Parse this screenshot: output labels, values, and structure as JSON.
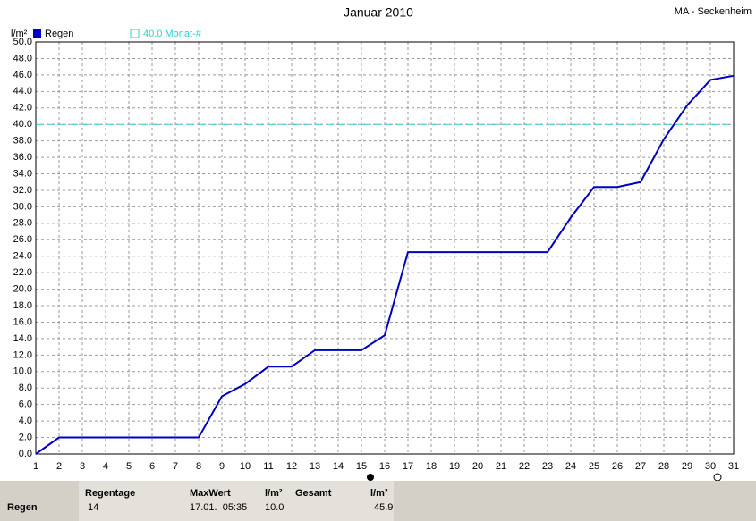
{
  "chart_data": {
    "type": "line",
    "title": "Januar 2010",
    "station": "MA - Seckenheim",
    "y_label": "l/m²",
    "x": [
      1,
      2,
      3,
      4,
      5,
      6,
      7,
      8,
      9,
      10,
      11,
      12,
      13,
      14,
      15,
      16,
      17,
      18,
      19,
      20,
      21,
      22,
      23,
      24,
      25,
      26,
      27,
      28,
      29,
      30,
      31
    ],
    "series": [
      {
        "name": "Regen",
        "color": "#0000c0",
        "values": [
          0,
          2.0,
          2.0,
          2.0,
          2.0,
          2.0,
          2.0,
          2.0,
          7.0,
          8.5,
          10.6,
          10.6,
          12.6,
          12.6,
          12.6,
          14.4,
          24.5,
          24.5,
          24.5,
          24.5,
          24.5,
          24.5,
          24.5,
          28.7,
          32.4,
          32.4,
          33.0,
          38.2,
          42.3,
          45.4,
          45.9
        ]
      }
    ],
    "reference_lines": [
      {
        "name": "40.0 Monat-#",
        "value": 40.0,
        "color": "#33cccc"
      }
    ],
    "xlim": [
      1,
      31
    ],
    "xticks": [
      1,
      2,
      3,
      4,
      5,
      6,
      7,
      8,
      9,
      10,
      11,
      12,
      13,
      14,
      15,
      16,
      17,
      18,
      19,
      20,
      21,
      22,
      23,
      24,
      25,
      26,
      27,
      28,
      29,
      30,
      31
    ],
    "ylim": [
      0,
      50
    ],
    "yticks": [
      {
        "value": 0,
        "label": "0.0"
      },
      {
        "value": 2,
        "label": "2.0"
      },
      {
        "value": 4,
        "label": "4.0"
      },
      {
        "value": 6,
        "label": "6.0"
      },
      {
        "value": 8,
        "label": "8.0"
      },
      {
        "value": 10,
        "label": "10.0"
      },
      {
        "value": 12,
        "label": "12.0"
      },
      {
        "value": 14,
        "label": "14.0"
      },
      {
        "value": 16,
        "label": "16.0"
      },
      {
        "value": 18,
        "label": "18.0"
      },
      {
        "value": 20,
        "label": "20.0"
      },
      {
        "value": 22,
        "label": "22.0"
      },
      {
        "value": 24,
        "label": "24.0"
      },
      {
        "value": 26,
        "label": "26.0"
      },
      {
        "value": 28,
        "label": "28.0"
      },
      {
        "value": 30,
        "label": "30.0"
      },
      {
        "value": 32,
        "label": "32.0"
      },
      {
        "value": 34,
        "label": "34.0"
      },
      {
        "value": 36,
        "label": "36.0"
      },
      {
        "value": 38,
        "label": "38.0"
      },
      {
        "value": 40,
        "label": "40.0"
      },
      {
        "value": 42,
        "label": "42.0"
      },
      {
        "value": 44,
        "label": "44.0"
      },
      {
        "value": 46,
        "label": "46.0"
      },
      {
        "value": 48,
        "label": "48.0"
      },
      {
        "value": 50,
        "label": "50.0"
      }
    ],
    "grid": true
  },
  "table": {
    "row_label": "Regen",
    "headers": [
      "Regentage",
      "MaxWert",
      "l/m²",
      "Gesamt",
      "l/m²"
    ],
    "values": [
      "14",
      "17.01.  05:35",
      "10.0",
      "",
      "45.9"
    ]
  }
}
